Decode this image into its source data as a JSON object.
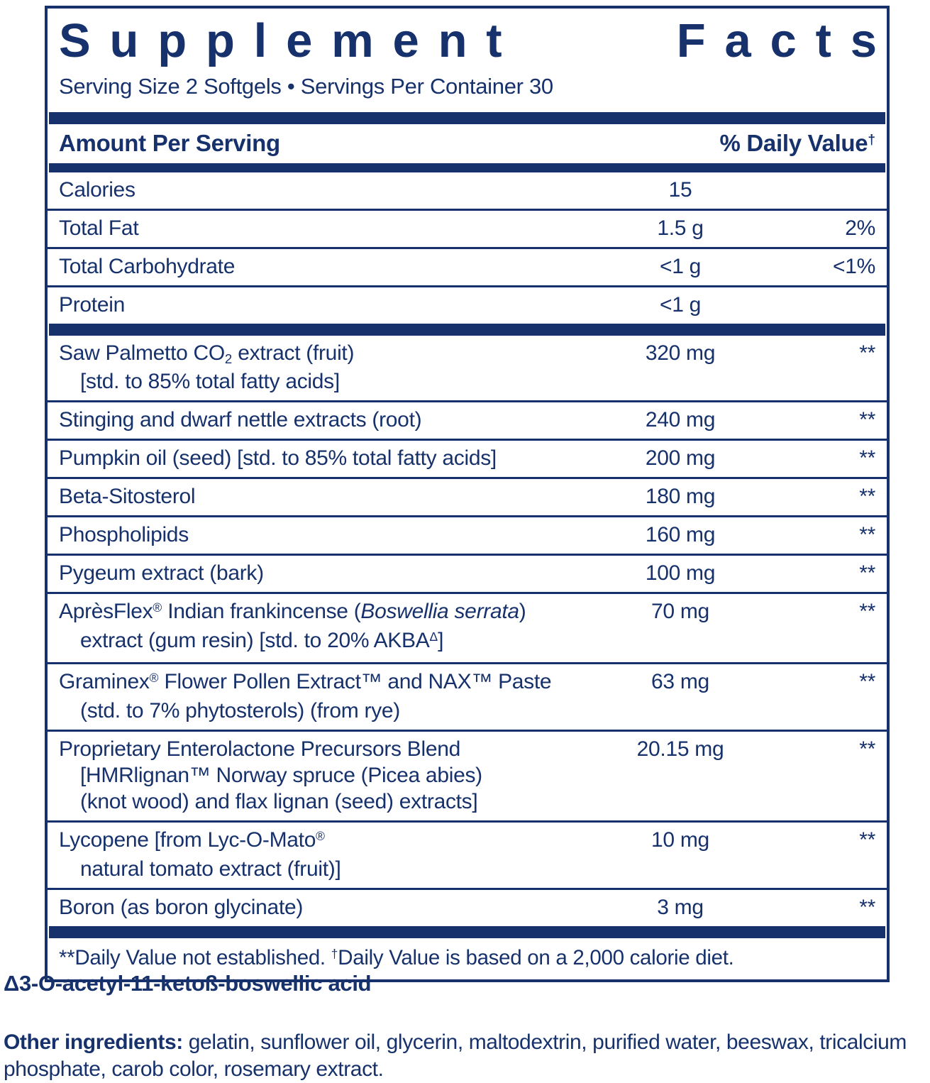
{
  "colors": {
    "navy": "#16316b"
  },
  "box": {
    "title_words": [
      "Supplement",
      "Facts"
    ],
    "serving_line": "Serving Size 2 Softgels • Servings Per Container 30",
    "header": {
      "amount_label": "Amount Per Serving",
      "dv_label": [
        {
          "t": "% Daily Value"
        },
        {
          "t": "†",
          "s": "sup"
        }
      ]
    },
    "nutrition_rows": [
      {
        "name": [
          [
            {
              "t": "Calories"
            }
          ]
        ],
        "amount": "15",
        "dv": ""
      },
      {
        "name": [
          [
            {
              "t": "Total Fat"
            }
          ]
        ],
        "amount": "1.5 g",
        "dv": "2%"
      },
      {
        "name": [
          [
            {
              "t": "Total Carbohydrate"
            }
          ]
        ],
        "amount": "<1 g",
        "dv": "<1%"
      },
      {
        "name": [
          [
            {
              "t": "Protein"
            }
          ]
        ],
        "amount": "<1 g",
        "dv": ""
      }
    ],
    "ingredient_rows": [
      {
        "name": [
          [
            {
              "t": "Saw Palmetto CO"
            },
            {
              "t": "2",
              "s": "sub"
            },
            {
              "t": " extract (fruit)"
            }
          ],
          [
            {
              "t": "[std. to 85% total fatty acids]"
            }
          ]
        ],
        "amount": "320 mg",
        "dv": "**"
      },
      {
        "name": [
          [
            {
              "t": "Stinging and dwarf nettle extracts (root)"
            }
          ]
        ],
        "amount": "240 mg",
        "dv": "**"
      },
      {
        "name": [
          [
            {
              "t": "Pumpkin oil (seed) [std. to 85% total fatty acids]"
            }
          ]
        ],
        "amount": "200 mg",
        "dv": "**"
      },
      {
        "name": [
          [
            {
              "t": "Beta-Sitosterol"
            }
          ]
        ],
        "amount": "180 mg",
        "dv": "**"
      },
      {
        "name": [
          [
            {
              "t": "Phospholipids"
            }
          ]
        ],
        "amount": "160 mg",
        "dv": "**"
      },
      {
        "name": [
          [
            {
              "t": "Pygeum extract (bark)"
            }
          ]
        ],
        "amount": "100 mg",
        "dv": "**"
      },
      {
        "name": [
          [
            {
              "t": "AprèsFlex"
            },
            {
              "t": "®",
              "s": "sup"
            },
            {
              "t": " Indian frankincense ("
            },
            {
              "t": "Boswellia serrata",
              "s": "it"
            },
            {
              "t": ")"
            }
          ],
          [
            {
              "t": "extract (gum resin) [std. to 20% AKBA"
            },
            {
              "t": "Δ",
              "s": "sup"
            },
            {
              "t": "]"
            }
          ]
        ],
        "amount": "70 mg",
        "dv": "**"
      },
      {
        "name": [
          [
            {
              "t": "Graminex"
            },
            {
              "t": "®",
              "s": "sup"
            },
            {
              "t": " Flower Pollen Extract™ and NAX™ Paste"
            }
          ],
          [
            {
              "t": "(std. to 7% phytosterols) (from rye)"
            }
          ]
        ],
        "amount": "63 mg",
        "dv": "**"
      },
      {
        "name": [
          [
            {
              "t": "Proprietary Enterolactone Precursors Blend"
            }
          ],
          [
            {
              "t": "[HMRlignan™ Norway spruce (Picea abies)"
            }
          ],
          [
            {
              "t": "(knot wood) and flax lignan (seed) extracts]"
            }
          ]
        ],
        "amount": "20.15 mg",
        "dv": "**"
      },
      {
        "name": [
          [
            {
              "t": "Lycopene [from Lyc-O-Mato"
            },
            {
              "t": "®",
              "s": "sup"
            }
          ],
          [
            {
              "t": "natural tomato extract (fruit)]"
            }
          ]
        ],
        "amount": "10 mg",
        "dv": "**"
      },
      {
        "name": [
          [
            {
              "t": "Boron (as boron glycinate)"
            }
          ]
        ],
        "amount": "3 mg",
        "dv": "**"
      }
    ],
    "footnote": [
      {
        "t": "**Daily Value not established.  "
      },
      {
        "t": "†",
        "s": "sup"
      },
      {
        "t": "Daily Value is based on a 2,000 calorie diet."
      }
    ]
  },
  "below": {
    "delta_note": "Δ3-O-acetyl-11-ketoß-boswellic acid",
    "other_ingredients_label": "Other ingredients:",
    "other_ingredients_text": " gelatin, sunflower oil, glycerin, maltodextrin, purified water, beeswax, tricalcium phosphate, carob color, rosemary extract."
  }
}
